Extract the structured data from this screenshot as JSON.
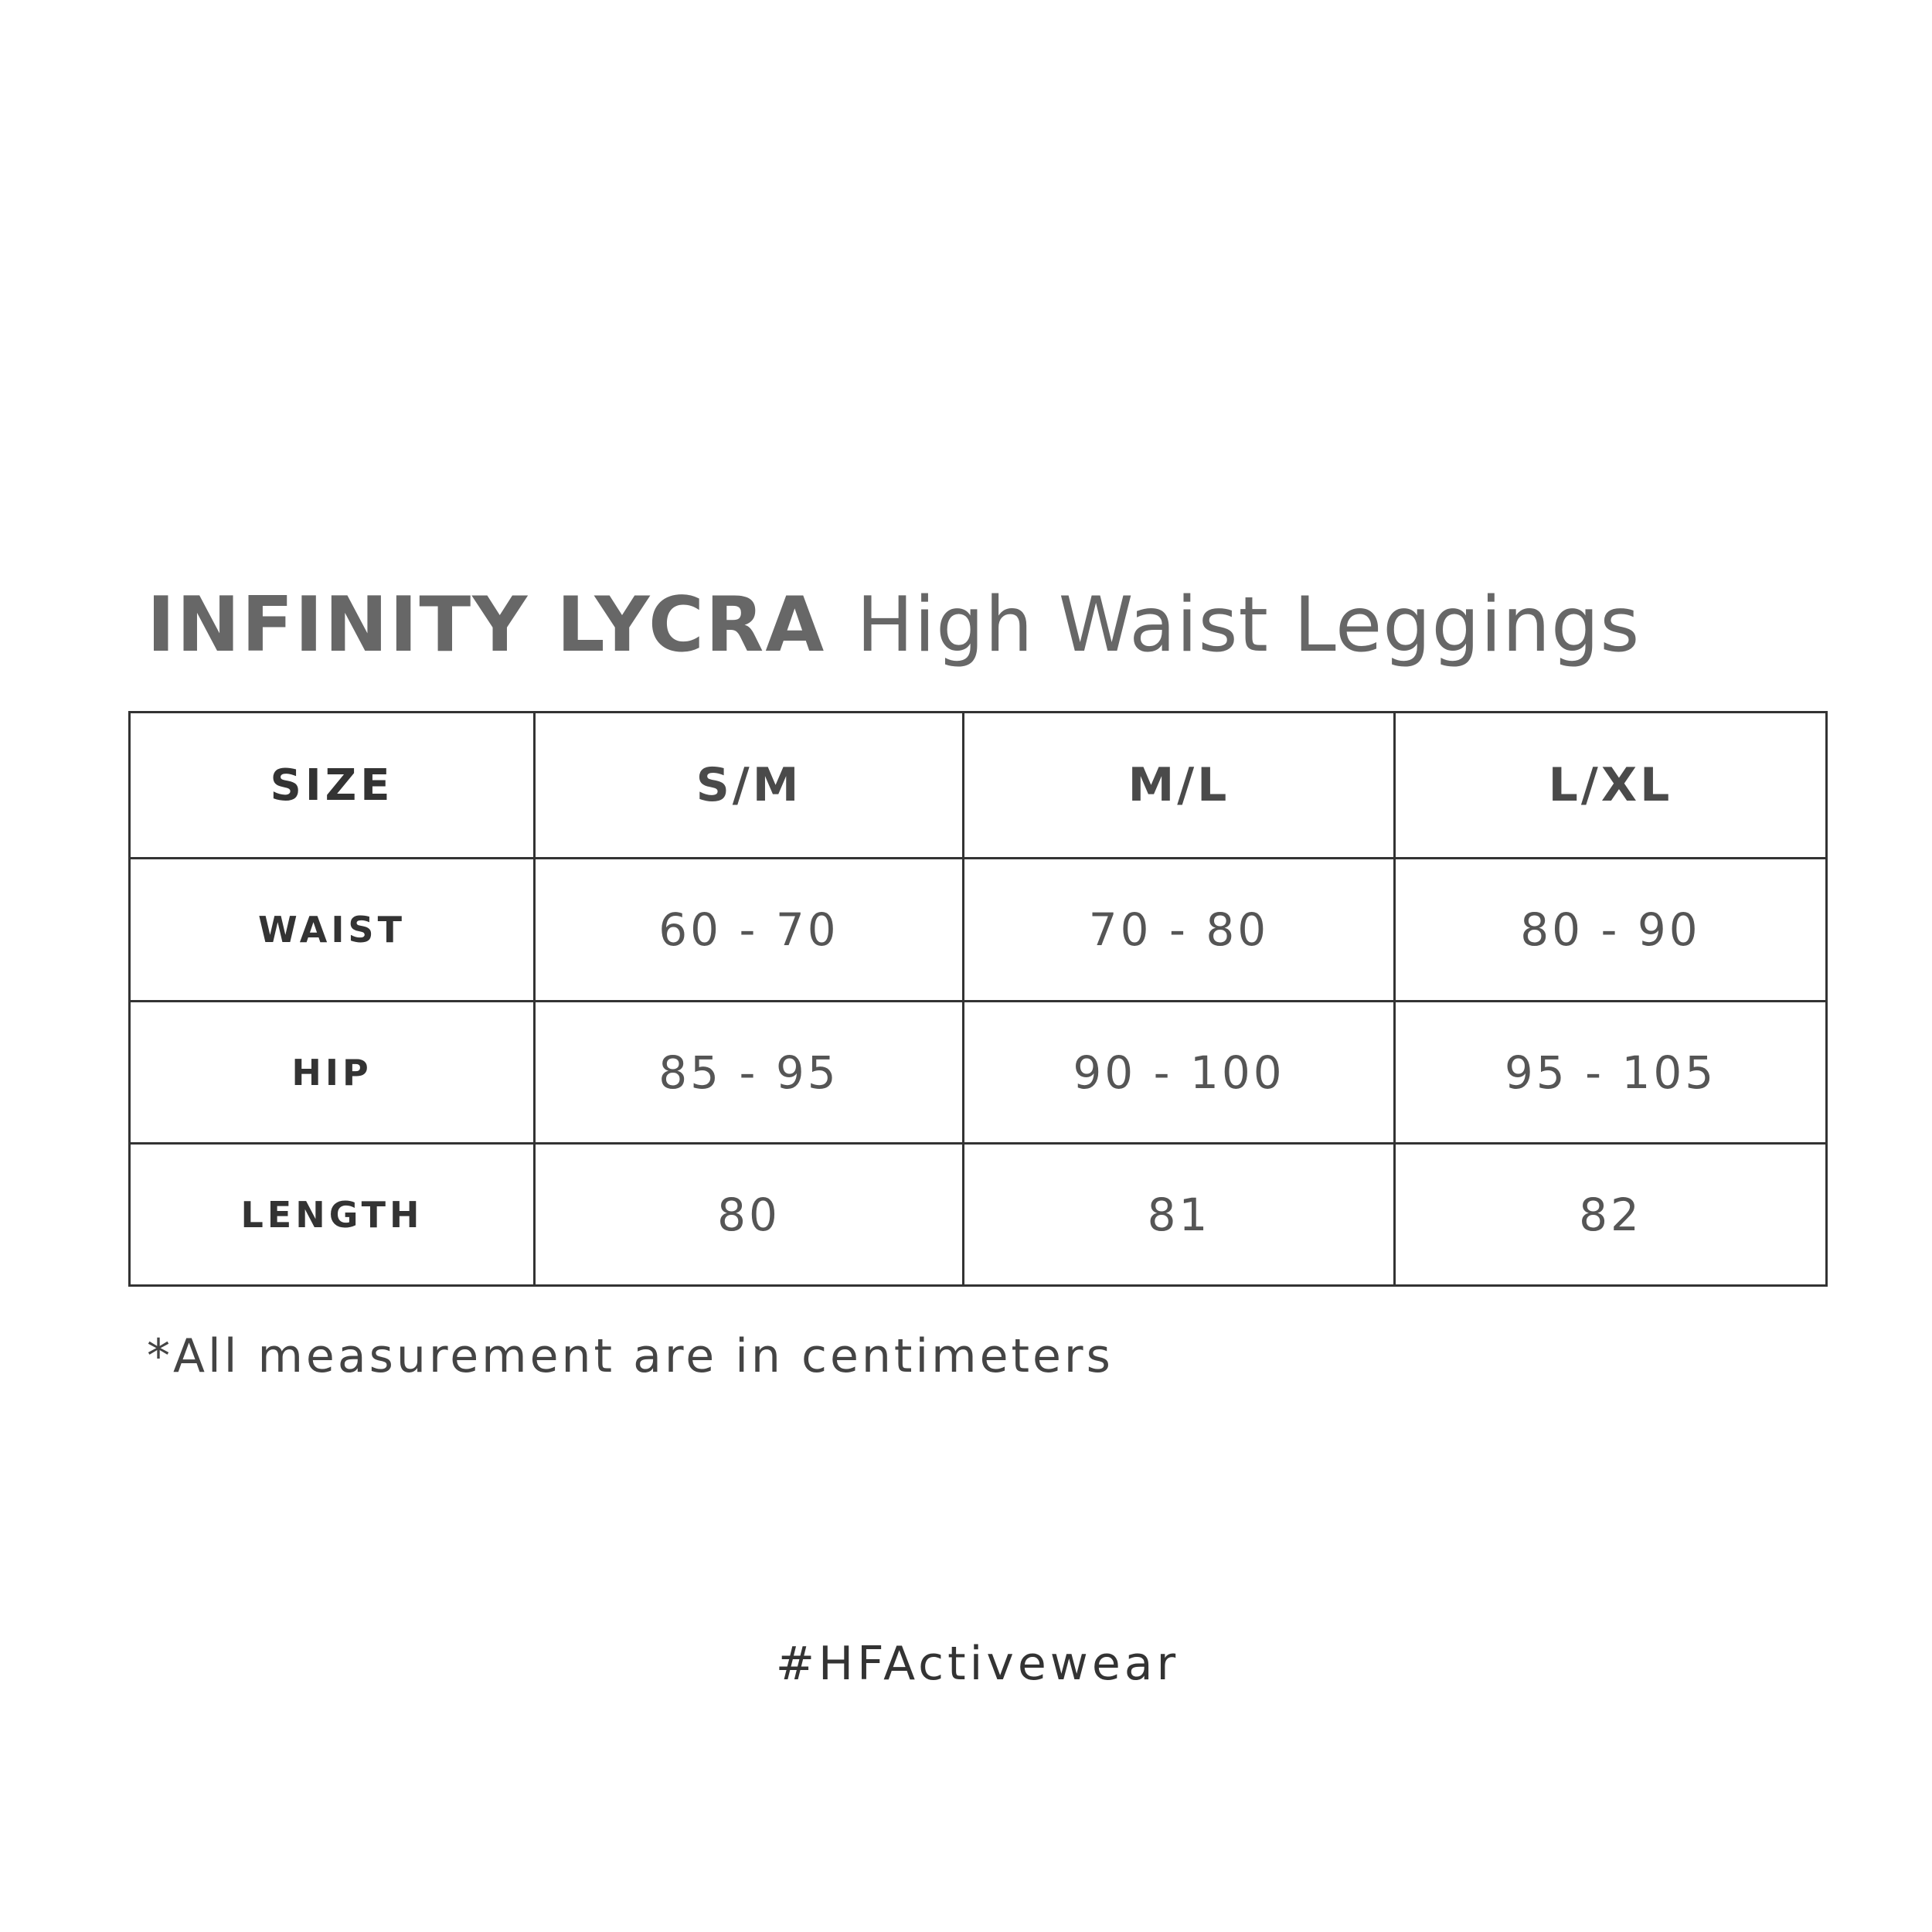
{
  "title": {
    "brand": "INFINITY LYCRA",
    "product": "High Waist Leggings"
  },
  "table": {
    "header": [
      "SIZE",
      "S/M",
      "M/L",
      "L/XL"
    ],
    "rows": [
      {
        "label": "WAIST",
        "values": [
          "60 - 70",
          "70 - 80",
          "80 - 90"
        ]
      },
      {
        "label": "HIP",
        "values": [
          "85 - 95",
          "90 - 100",
          "95 - 105"
        ]
      },
      {
        "label": "LENGTH",
        "values": [
          "80",
          "81",
          "82"
        ]
      }
    ]
  },
  "note": "*All measurement are in centimeters",
  "hashtag": "#HFActivewear",
  "colors": {
    "title": "#676767",
    "border": "#333333",
    "text": "#555555"
  }
}
